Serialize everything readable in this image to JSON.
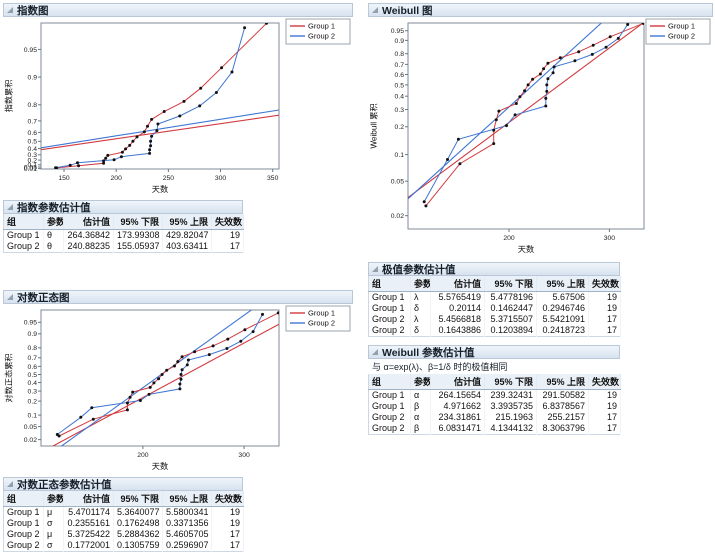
{
  "colors": {
    "group1": "#d23a3f",
    "group2": "#3f76d3",
    "points": "#111111",
    "header_bg_top": "#f0f5fa",
    "header_bg_bottom": "#d7e2ef",
    "plot_frame": "#7f8b97"
  },
  "sections": {
    "exp_plot": {
      "title": "指数图"
    },
    "exp_params": {
      "title": "指数参数估计值",
      "headers": [
        "组",
        "参数",
        "估计值",
        "95% 下限",
        "95% 上限",
        "失效数"
      ],
      "rows": [
        [
          "Group 1",
          "θ",
          "264.36842",
          "173.99308",
          "429.82047",
          "19"
        ],
        [
          "Group 2",
          "θ",
          "240.88235",
          "155.05937",
          "403.63411",
          "17"
        ]
      ]
    },
    "lognorm_plot": {
      "title": "对数正态图"
    },
    "lognorm_params": {
      "title": "对数正态参数估计值",
      "headers": [
        "组",
        "参数",
        "估计值",
        "95% 下限",
        "95% 上限",
        "失效数"
      ],
      "rows": [
        [
          "Group 1",
          "μ",
          "5.4701174",
          "5.3640077",
          "5.5800341",
          "19"
        ],
        [
          "Group 1",
          "σ",
          "0.2355161",
          "0.1762498",
          "0.3371356",
          "19"
        ],
        [
          "Group 2",
          "μ",
          "5.3725422",
          "5.2884362",
          "5.4605705",
          "17"
        ],
        [
          "Group 2",
          "σ",
          "0.1772001",
          "0.1305759",
          "0.2596907",
          "17"
        ]
      ]
    },
    "weibull_plot": {
      "title": "Weibull 图"
    },
    "extreme_params": {
      "title": "极值参数估计值",
      "headers": [
        "组",
        "参数",
        "估计值",
        "95% 下限",
        "95% 上限",
        "失效数"
      ],
      "rows": [
        [
          "Group 1",
          "λ",
          "5.5765419",
          "5.4778196",
          "5.67506",
          "19"
        ],
        [
          "Group 1",
          "δ",
          "0.20114",
          "0.1462447",
          "0.2946746",
          "19"
        ],
        [
          "Group 2",
          "λ",
          "5.4566818",
          "5.3715507",
          "5.5421091",
          "17"
        ],
        [
          "Group 2",
          "δ",
          "0.1643886",
          "0.1203894",
          "0.2418723",
          "17"
        ]
      ]
    },
    "weibull_params": {
      "title": "Weibull 参数估计值",
      "note": "与 α=exp(λ)、β=1/δ 时的极值相同",
      "headers": [
        "组",
        "参数",
        "估计值",
        "95% 下限",
        "95% 上限",
        "失效数"
      ],
      "rows": [
        [
          "Group 1",
          "α",
          "264.15654",
          "239.32431",
          "291.50582",
          "19"
        ],
        [
          "Group 1",
          "β",
          "4.971662",
          "3.3935735",
          "6.8378567",
          "19"
        ],
        [
          "Group 2",
          "α",
          "234.31861",
          "215.1963",
          "255.2157",
          "17"
        ],
        [
          "Group 2",
          "β",
          "6.0831471",
          "4.1344132",
          "8.3063796",
          "17"
        ]
      ]
    }
  },
  "chart_data": {
    "empirical": {
      "series": [
        {
          "name": "Group 1",
          "color_key": "group1",
          "days": [
            143,
            164,
            188,
            188,
            190,
            192,
            206,
            209,
            213,
            216,
            220,
            227,
            230,
            234,
            246,
            265,
            281,
            301,
            344
          ],
          "cum_prob": [
            0.026,
            0.079,
            0.132,
            0.184,
            0.237,
            0.289,
            0.342,
            0.395,
            0.447,
            0.5,
            0.553,
            0.605,
            0.658,
            0.711,
            0.763,
            0.816,
            0.868,
            0.921,
            0.974
          ]
        },
        {
          "name": "Group 2",
          "color_key": "group2",
          "days": [
            142,
            156,
            163,
            198,
            205,
            232,
            232,
            233,
            233,
            234,
            239,
            240,
            261,
            280,
            296,
            311,
            323
          ],
          "cum_prob": [
            0.029,
            0.088,
            0.147,
            0.206,
            0.265,
            0.324,
            0.382,
            0.441,
            0.5,
            0.559,
            0.618,
            0.676,
            0.735,
            0.794,
            0.853,
            0.912,
            0.971
          ]
        }
      ]
    },
    "plots": [
      {
        "id": "exponential",
        "type": "line",
        "title": "指数图",
        "xlabel": "天数",
        "ylabel": "指数累积",
        "xscale": "linear",
        "yscale": "exponential",
        "xlim": [
          128,
          356
        ],
        "x_ticks": [
          150,
          200,
          250,
          300,
          350
        ],
        "y_ticks": [
          0.01,
          0.05,
          0.1,
          0.2,
          0.3,
          0.4,
          0.5,
          0.6,
          0.7,
          0.8,
          0.9,
          0.95
        ],
        "y_prob_range": [
          0.0,
          0.9742
        ],
        "fits": [
          {
            "name": "Group 1",
            "model": "exponential",
            "theta": 264.36842
          },
          {
            "name": "Group 2",
            "model": "exponential",
            "theta": 240.88235
          }
        ]
      },
      {
        "id": "weibull",
        "type": "line",
        "title": "Weibull 图",
        "xlabel": "天数",
        "ylabel": "Weibull 累积",
        "xscale": "log",
        "yscale": "weibull",
        "xlim": [
          133,
          345
        ],
        "x_ticks": [
          200,
          300
        ],
        "y_ticks": [
          0.02,
          0.05,
          0.1,
          0.2,
          0.3,
          0.4,
          0.5,
          0.6,
          0.7,
          0.8,
          0.9,
          0.95
        ],
        "y_prob_range": [
          0.014,
          0.975
        ],
        "fits": [
          {
            "name": "Group 1",
            "model": "weibull",
            "alpha": 264.15654,
            "beta": 4.971662
          },
          {
            "name": "Group 2",
            "model": "weibull",
            "alpha": 234.31861,
            "beta": 6.0831471
          }
        ]
      },
      {
        "id": "lognormal",
        "type": "line",
        "title": "对数正态图",
        "xlabel": "天数",
        "ylabel": "对数正态累积",
        "xscale": "log",
        "yscale": "normal",
        "xlim": [
          133,
          345
        ],
        "x_ticks": [
          200,
          300
        ],
        "y_ticks": [
          0.02,
          0.05,
          0.1,
          0.2,
          0.3,
          0.4,
          0.5,
          0.6,
          0.7,
          0.8,
          0.9,
          0.95
        ],
        "y_prob_range": [
          0.012,
          0.979
        ],
        "fits": [
          {
            "name": "Group 1",
            "model": "lognormal",
            "mu": 5.4701174,
            "sigma": 0.2355161
          },
          {
            "name": "Group 2",
            "model": "lognormal",
            "mu": 5.3725422,
            "sigma": 0.1772001
          }
        ]
      }
    ]
  }
}
